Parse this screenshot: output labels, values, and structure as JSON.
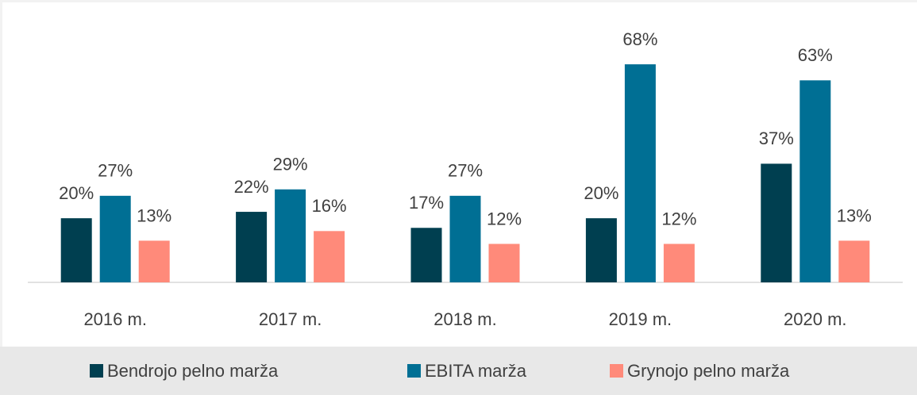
{
  "chart_data": {
    "type": "bar",
    "categories": [
      "2016 m.",
      "2017 m.",
      "2018 m.",
      "2019 m.",
      "2020 m."
    ],
    "series": [
      {
        "name": "Bendrojo pelno marža",
        "color": "#003f50",
        "values": [
          20,
          22,
          17,
          20,
          37
        ],
        "value_labels": [
          "20%",
          "22%",
          "17%",
          "20%",
          "37%"
        ]
      },
      {
        "name": "EBITA marža",
        "color": "#006f94",
        "values": [
          27,
          29,
          27,
          68,
          63
        ],
        "value_labels": [
          "27%",
          "29%",
          "27%",
          "68%",
          "63%"
        ]
      },
      {
        "name": "Grynojo pelno marža",
        "color": "#ff8a7a",
        "values": [
          13,
          16,
          12,
          12,
          13
        ],
        "value_labels": [
          "13%",
          "16%",
          "12%",
          "12%",
          "13%"
        ]
      }
    ],
    "ylim": [
      0,
      70
    ],
    "legend": "bottom"
  }
}
